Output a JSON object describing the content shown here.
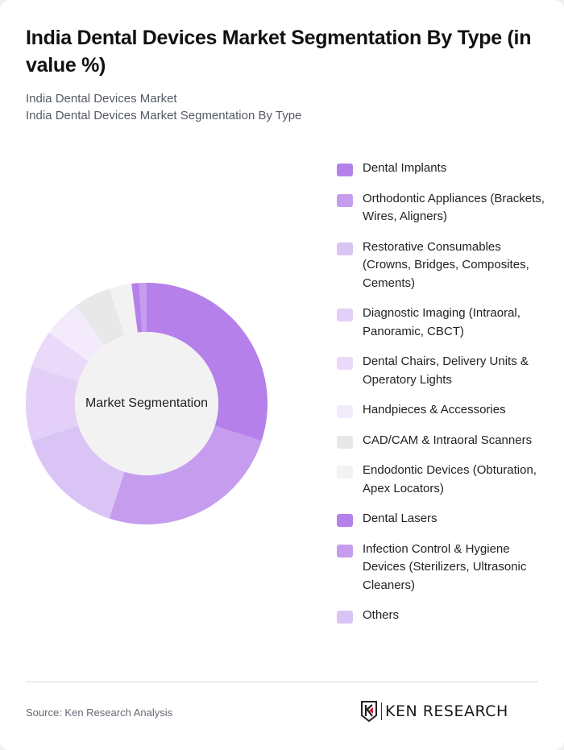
{
  "header": {
    "title": "India Dental Devices Market Segmentation By Type (in value %)",
    "subtitle_line1": "India Dental Devices Market",
    "subtitle_line2": "India Dental Devices Market Segmentation By Type"
  },
  "chart": {
    "center_label": "Market Segmentation"
  },
  "chart_data": {
    "type": "pie",
    "subtype": "donut",
    "title": "India Dental Devices Market Segmentation By Type (in value %)",
    "center_label": "Market Segmentation",
    "legend_position": "right",
    "categories": [
      "Dental Implants",
      "Orthodontic Appliances (Brackets, Wires, Aligners)",
      "Restorative Consumables (Crowns, Bridges, Composites, Cements)",
      "Diagnostic Imaging (Intraoral, Panoramic, CBCT)",
      "Dental Chairs, Delivery Units & Operatory Lights",
      "Handpieces & Accessories",
      "CAD/CAM & Intraoral Scanners",
      "Endodontic Devices (Obturation, Apex Locators)",
      "Dental Lasers",
      "Infection Control & Hygiene Devices (Sterilizers, Ultrasonic Cleaners)",
      "Others"
    ],
    "values": [
      30,
      25,
      15,
      10,
      5,
      5,
      5,
      3,
      1,
      1,
      0
    ],
    "colors": [
      "#b580e9",
      "#c59cee",
      "#dac3f5",
      "#e3cff7",
      "#ead9f9",
      "#f3ebfc",
      "#e8e8e8",
      "#f2f2f2",
      "#b580e9",
      "#c59cee",
      "#dac3f5"
    ],
    "unit": "%"
  },
  "legend": {
    "items": [
      {
        "label": "Dental Implants",
        "color": "#b580e9"
      },
      {
        "label": "Orthodontic Appliances (Brackets, Wires, Aligners)",
        "color": "#c59cee"
      },
      {
        "label": "Restorative Consumables (Crowns, Bridges, Composites, Cements)",
        "color": "#dac3f5"
      },
      {
        "label": "Diagnostic Imaging (Intraoral, Panoramic, CBCT)",
        "color": "#e3cff7"
      },
      {
        "label": "Dental Chairs, Delivery Units & Operatory Lights",
        "color": "#ead9f9"
      },
      {
        "label": "Handpieces & Accessories",
        "color": "#f3ebfc"
      },
      {
        "label": "CAD/CAM & Intraoral Scanners",
        "color": "#e8e8e8"
      },
      {
        "label": "Endodontic Devices (Obturation, Apex Locators)",
        "color": "#f2f2f2"
      },
      {
        "label": "Dental Lasers",
        "color": "#b580e9"
      },
      {
        "label": "Infection Control & Hygiene Devices (Sterilizers, Ultrasonic Cleaners)",
        "color": "#c59cee"
      },
      {
        "label": "Others",
        "color": "#dac3f5"
      }
    ]
  },
  "footer": {
    "source": "Source: Ken Research Analysis",
    "logo_text": "KEN RESEARCH"
  }
}
